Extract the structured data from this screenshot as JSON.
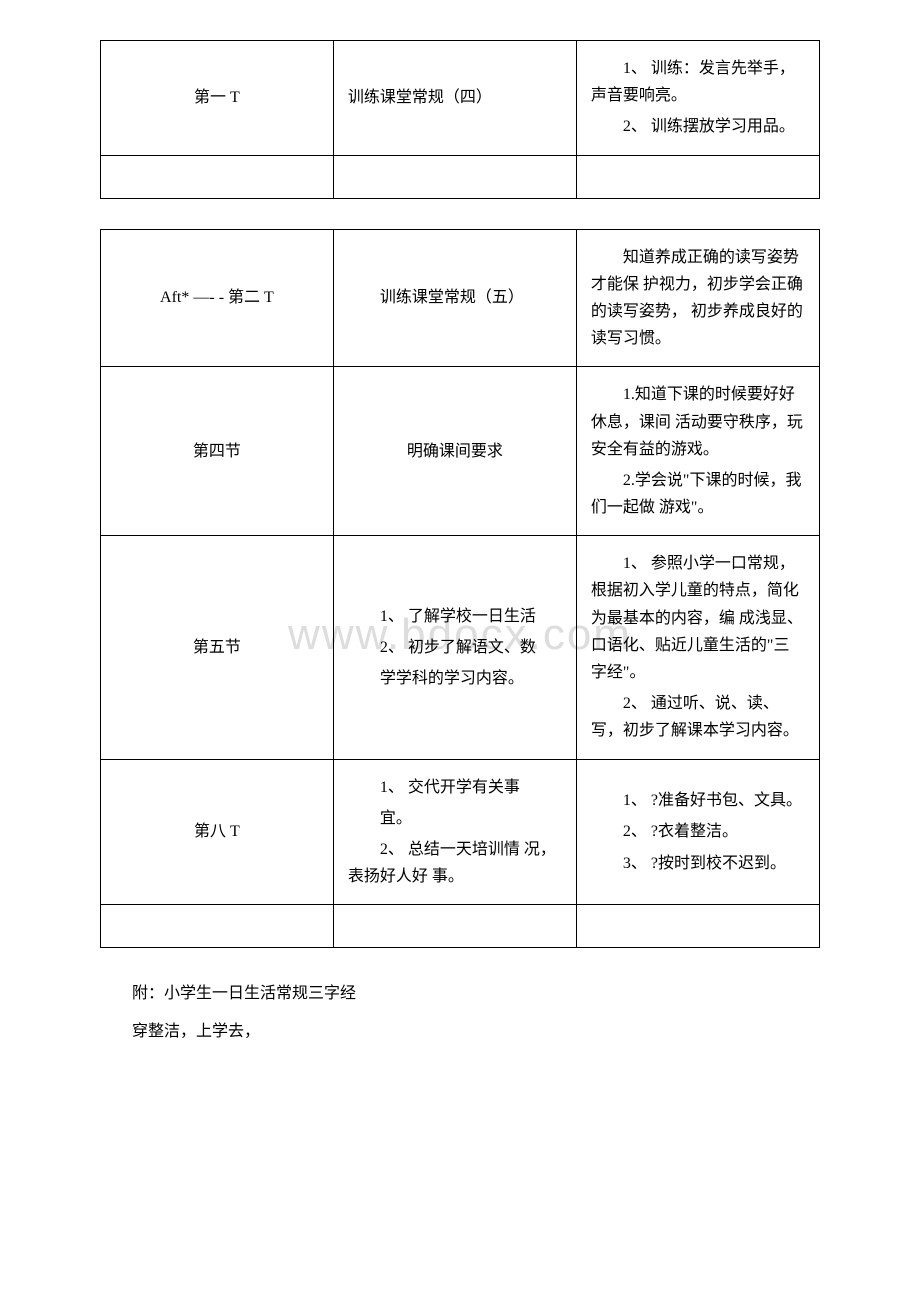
{
  "watermark": "www.bdocx.com",
  "table1": {
    "rows": [
      {
        "c1": "第一 T",
        "c2": "训练课堂常规（四）",
        "c3_lines": [
          "1、 训练：发言先举手，声音要响亮。",
          "2、 训练摆放学习用品。"
        ]
      }
    ]
  },
  "table2": {
    "rows": [
      {
        "c1": "Aft* —- - 第二 T",
        "c2": "训练课堂常规（五）",
        "c3_lines": [
          "知道养成正确的读写姿势才能保 护视力，初步学会正确的读写姿势， 初步养成良好的读写习惯。"
        ]
      },
      {
        "c1": "第四节",
        "c2": "明确课间要求",
        "c3_lines": [
          "1.知道下课的时候要好好休息，课间 活动要守秩序，玩安全有益的游戏。",
          "2.学会说\"下课的时候，我们一起做 游戏\"。"
        ]
      },
      {
        "c1": "第五节",
        "c2_lines": [
          "1、 了解学校一日生活",
          "2、 初步了解语文、数",
          "学学科的学习内容。"
        ],
        "c3_lines": [
          "1、 参照小学一口常规，根据初入学儿童的特点，简化为最基本的内容，编 成浅显、口语化、贴近儿童生活的\"三 字经\"。",
          "2、 通过听、说、读、写，初步了解课本学习内容。"
        ]
      },
      {
        "c1": "第八 T",
        "c2_lines": [
          "1、 交代开学有关事",
          "宜。",
          "2、 总结一天培训情 况，表扬好人好 事。"
        ],
        "c3_lines": [
          "1、 ?准备好书包、文具。",
          "2、 ?衣着整洁。",
          "3、 ?按时到校不迟到。"
        ]
      }
    ]
  },
  "footer": {
    "line1": "附：小学生一日生活常规三字经",
    "line2": "穿整洁，上学去，"
  }
}
